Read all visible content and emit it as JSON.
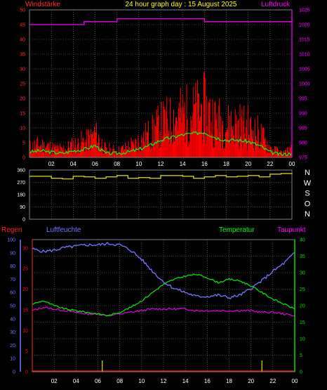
{
  "header": {
    "left_label": "Windstärke",
    "title": "24 hour graph day : 15 August 2025",
    "right_label": "Luftdruck"
  },
  "x_ticks": [
    "02",
    "04",
    "06",
    "08",
    "10",
    "12",
    "14",
    "16",
    "18",
    "20",
    "22",
    "00"
  ],
  "colors": {
    "wind": "#ff0000",
    "wind_avg": "#00ff00",
    "pressure": "#cc00cc",
    "direction": "#cccc00",
    "humidity": "#7777ff",
    "temperature": "#00dd00",
    "dewpoint": "#dd00dd",
    "rain": "#ff0000",
    "grid": "#808080",
    "axis_left": "#ff3333",
    "axis_right": "#ff00ff"
  },
  "labels": {
    "regen": "Regen",
    "luftfeuchte": "Luftfeuchte",
    "temperatur": "Temperatur",
    "taupunkt": "Taupunkt"
  },
  "directions": [
    "N",
    "W",
    "S",
    "O",
    "N"
  ],
  "chart_data": [
    {
      "type": "bar",
      "ylabel_left": "Windstärke",
      "ylabel_right": "Luftdruck",
      "ylim_left": [
        0,
        50
      ],
      "ylim_right": [
        975,
        1025
      ],
      "yticks_left": [
        0,
        5,
        10,
        15,
        20,
        25,
        30,
        35,
        40,
        45,
        50
      ],
      "yticks_right": [
        975,
        980,
        985,
        990,
        995,
        1000,
        1005,
        1010,
        1015,
        1020,
        1025
      ],
      "x": [
        0,
        1,
        2,
        3,
        4,
        5,
        6,
        7,
        8,
        9,
        10,
        11,
        12,
        13,
        14,
        15,
        16,
        17,
        18,
        19,
        20,
        21,
        22,
        23,
        24
      ],
      "series": [
        {
          "name": "Windstärke",
          "values": [
            4,
            5,
            4,
            3,
            5,
            6,
            9,
            3,
            3,
            4,
            6,
            9,
            13,
            15,
            17,
            18,
            19,
            15,
            13,
            13,
            12,
            9,
            4,
            2,
            3
          ]
        },
        {
          "name": "Luftdruck",
          "values": [
            1020,
            1020,
            1020,
            1020,
            1020,
            1021,
            1021,
            1021,
            1022,
            1022,
            1022,
            1022,
            1022,
            1022,
            1022,
            1022,
            1021,
            1021,
            1021,
            1021,
            1021,
            1021,
            1021,
            1021,
            1022
          ]
        }
      ]
    },
    {
      "type": "line",
      "ylim": [
        0,
        360
      ],
      "yticks": [
        0,
        90,
        180,
        270,
        360
      ],
      "x": [
        0,
        1,
        2,
        3,
        4,
        5,
        6,
        7,
        8,
        9,
        10,
        11,
        12,
        13,
        14,
        15,
        16,
        17,
        18,
        19,
        20,
        21,
        22,
        23,
        24
      ],
      "values": [
        315,
        315,
        300,
        295,
        315,
        310,
        300,
        310,
        320,
        300,
        305,
        300,
        320,
        320,
        315,
        300,
        310,
        320,
        310,
        315,
        320,
        310,
        330,
        335,
        330
      ]
    },
    {
      "type": "line",
      "ylim": [
        0,
        40
      ],
      "yticks_right": [
        0,
        5,
        10,
        15,
        20,
        25,
        30,
        35,
        40
      ],
      "yticks_humidity": [
        0,
        10,
        20,
        30,
        40,
        50,
        60,
        70,
        80,
        90,
        100
      ],
      "yticks_rain": [
        0,
        5,
        10,
        15,
        20,
        25,
        30
      ],
      "x": [
        0,
        1,
        2,
        3,
        4,
        5,
        6,
        7,
        8,
        9,
        10,
        11,
        12,
        13,
        14,
        15,
        16,
        17,
        18,
        19,
        20,
        21,
        22,
        23,
        24
      ],
      "series": [
        {
          "name": "Luftfeuchte",
          "values": [
            93,
            91,
            92,
            94,
            95,
            96,
            96,
            97,
            96,
            92,
            85,
            76,
            68,
            63,
            60,
            57,
            57,
            58,
            56,
            58,
            63,
            69,
            76,
            82,
            90
          ]
        },
        {
          "name": "Temperatur",
          "values": [
            20.5,
            21.5,
            20,
            19,
            18.5,
            18,
            17.5,
            17,
            18,
            19.5,
            21.5,
            24,
            26.5,
            28,
            29,
            29.5,
            28.5,
            27,
            28,
            27.5,
            26,
            24,
            22,
            20.5,
            19
          ]
        },
        {
          "name": "Taupunkt",
          "values": [
            18.5,
            19.5,
            19,
            18.5,
            18,
            17.5,
            17.5,
            17,
            17.5,
            18,
            18.5,
            19,
            19,
            19,
            19,
            18.5,
            18.5,
            18.5,
            18.5,
            18.5,
            18.5,
            18,
            18,
            17.5,
            17
          ]
        },
        {
          "name": "Regen",
          "values": [
            0,
            0,
            0,
            0,
            0,
            0,
            0,
            0,
            0,
            0,
            0,
            0,
            0,
            0,
            0,
            0,
            0,
            0,
            0,
            0,
            0,
            0,
            0,
            0,
            0
          ]
        }
      ]
    }
  ]
}
